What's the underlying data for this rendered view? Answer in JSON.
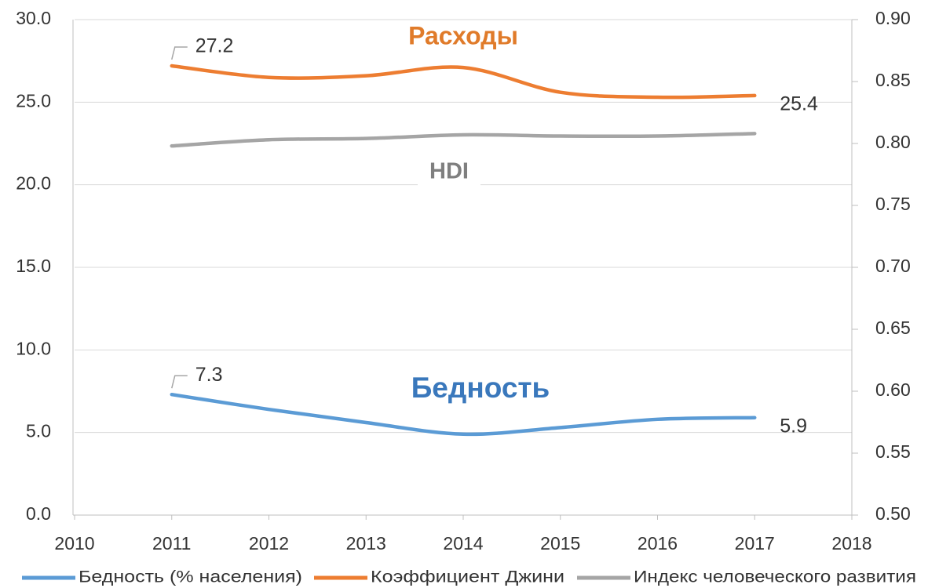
{
  "chart_data": {
    "type": "line",
    "x": [
      2011,
      2012,
      2013,
      2014,
      2015,
      2016,
      2017
    ],
    "xlim": [
      2010,
      2018
    ],
    "xticks": [
      2010,
      2011,
      2012,
      2013,
      2014,
      2015,
      2016,
      2017,
      2018
    ],
    "ylim": [
      0,
      30
    ],
    "yticks": [
      {
        "value": 0,
        "label": "0.0"
      },
      {
        "value": 5,
        "label": "5.0"
      },
      {
        "value": 10,
        "label": "10.0"
      },
      {
        "value": 15,
        "label": "15.0"
      },
      {
        "value": 20,
        "label": "20.0"
      },
      {
        "value": 25,
        "label": "25.0"
      },
      {
        "value": 30,
        "label": "30.0"
      }
    ],
    "y2lim": [
      0.5,
      0.9
    ],
    "y2ticks": [
      {
        "value": 0.5,
        "label": "0.50"
      },
      {
        "value": 0.55,
        "label": "0.55"
      },
      {
        "value": 0.6,
        "label": "0.60"
      },
      {
        "value": 0.65,
        "label": "0.65"
      },
      {
        "value": 0.7,
        "label": "0.70"
      },
      {
        "value": 0.75,
        "label": "0.75"
      },
      {
        "value": 0.8,
        "label": "0.80"
      },
      {
        "value": 0.85,
        "label": "0.85"
      },
      {
        "value": 0.9,
        "label": "0.90"
      }
    ],
    "grid": true,
    "legend": "bottom",
    "series": [
      {
        "name": "Бедность (% населения)",
        "color": "#5b9bd5",
        "values": [
          7.3,
          6.4,
          5.6,
          4.9,
          5.3,
          5.8,
          5.9
        ]
      },
      {
        "name": "Коэффициент Джини",
        "color": "#ed7d31",
        "values": [
          27.2,
          26.5,
          26.6,
          27.1,
          25.6,
          25.3,
          25.4
        ]
      },
      {
        "name": "Индекс человеческого развития",
        "color": "#a5a5a5",
        "axis": "y2",
        "values": [
          0.798,
          0.803,
          0.804,
          0.807,
          0.806,
          0.806,
          0.808
        ]
      }
    ],
    "annotations": [
      {
        "text": "Расходы",
        "color": "#e07b2a"
      },
      {
        "text": "HDI",
        "color": "#7f7f7f"
      },
      {
        "text": "Бедность",
        "color": "#3a78bc"
      }
    ]
  }
}
